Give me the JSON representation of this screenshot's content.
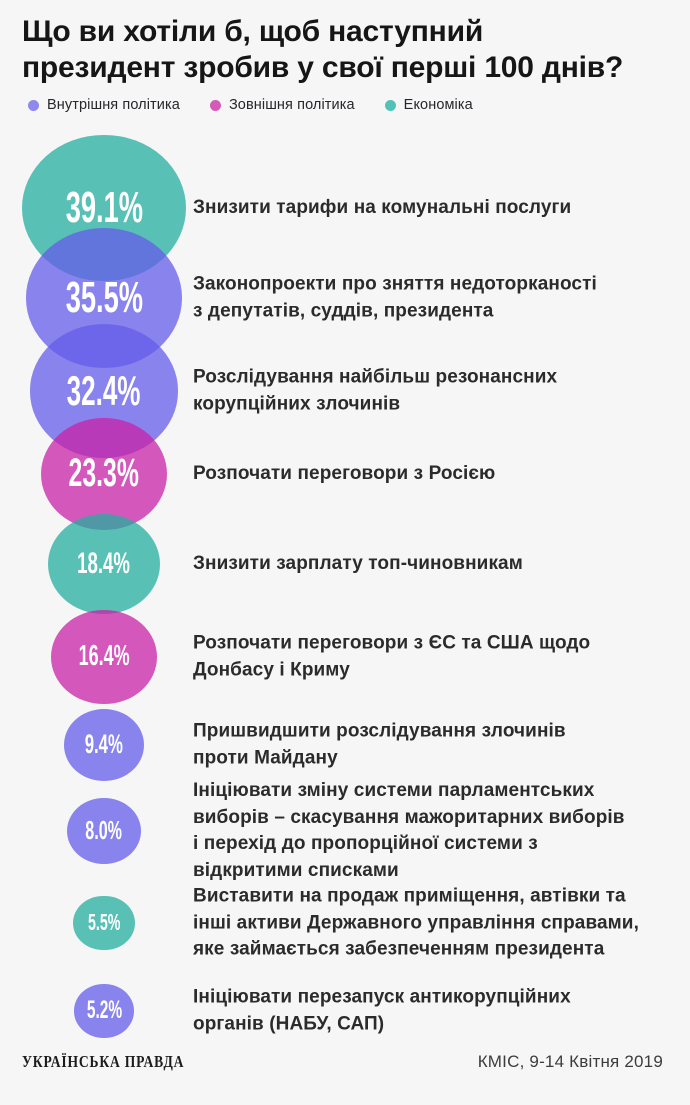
{
  "title": "Що ви хотіли б, щоб наступний\nпрезидент зробив у свої перші 100 днів?",
  "legend": [
    {
      "id": "internal",
      "label": "Внутрішня політика",
      "color": "#8E88F0",
      "fill": "rgba(100,92,234,0.75)"
    },
    {
      "id": "external",
      "label": "Зовнішня політика",
      "color": "#D65AB9",
      "fill": "rgba(200,34,167,0.75)"
    },
    {
      "id": "economy",
      "label": "Економіка",
      "color": "#52C2B6",
      "fill": "rgba(36,174,159,0.75)"
    }
  ],
  "chart_data": {
    "type": "bubble",
    "title": "Що ви хотіли б, щоб наступний президент зробив у свої перші 100 днів?",
    "unit": "%",
    "legend_position": "top",
    "items": [
      {
        "value": 39.1,
        "display": "39.1%",
        "category": "economy",
        "label": "Знизити тарифи на комунальні послуги"
      },
      {
        "value": 35.5,
        "display": "35.5%",
        "category": "internal",
        "label": "Законопроекти про зняття недоторканості\nз депутатів, суддів, президента"
      },
      {
        "value": 32.4,
        "display": "32.4%",
        "category": "internal",
        "label": "Розслідування найбільш резонансних\nкорупційних злочинів"
      },
      {
        "value": 23.3,
        "display": "23.3%",
        "category": "external",
        "label": "Розпочати переговори з Росією"
      },
      {
        "value": 18.4,
        "display": "18.4%",
        "category": "economy",
        "label": "Знизити зарплату топ-чиновникам"
      },
      {
        "value": 16.4,
        "display": "16.4%",
        "category": "external",
        "label": "Розпочати переговори з ЄС та США щодо\nДонбасу і Криму"
      },
      {
        "value": 9.4,
        "display": "9.4%",
        "category": "internal",
        "label": "Пришвидшити розслідування злочинів\nпроти Майдану"
      },
      {
        "value": 8.0,
        "display": "8.0%",
        "category": "internal",
        "label": "Ініціювати зміну системи парламентських\nвиборів – скасування мажоритарних виборів\nі перехід до пропорційної системи з\nвідкритими списками"
      },
      {
        "value": 5.5,
        "display": "5.5%",
        "category": "economy",
        "label": "Виставити на продаж приміщення, автівки та\nінші активи Державного управління справами,\nяке займається забезпеченням президента"
      },
      {
        "value": 5.2,
        "display": "5.2%",
        "category": "internal",
        "label": "Ініціювати перезапуск антикорупційних\nорганів (НАБУ, САП)"
      }
    ]
  },
  "footer": {
    "brand": "УКРАЇНСЬКА ПРАВДА",
    "source": "КМІС, 9-14 Квітня 2019"
  }
}
